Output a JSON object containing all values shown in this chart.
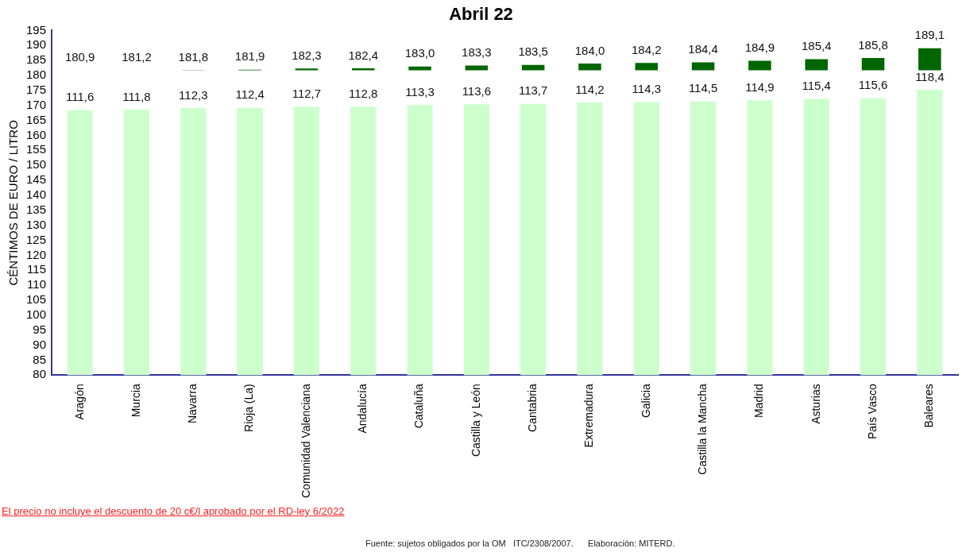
{
  "chart_data": {
    "type": "bar",
    "title": "Abril 22",
    "ylabel": "CÉNTIMOS DE EURO / LITRO",
    "categories": [
      "Aragón",
      "Murcia",
      "Navarra",
      "Rioja (La)",
      "Comunidad Valenciana",
      "Andalucía",
      "Cataluña",
      "Castilla y León",
      "Cantabria",
      "Extremadura",
      "Galicia",
      "Castilla la Mancha",
      "Madrid",
      "Asturias",
      "País Vasco",
      "Baleares"
    ],
    "series": [
      {
        "color": "#ccffcc",
        "axis": "y2",
        "values": [
          111.6,
          111.8,
          112.3,
          112.4,
          112.7,
          112.8,
          113.3,
          113.6,
          113.7,
          114.2,
          114.3,
          114.5,
          114.9,
          115.4,
          115.6,
          118.4
        ],
        "value_labels": [
          "111,6",
          "111,8",
          "112,3",
          "112,4",
          "112,7",
          "112,8",
          "113,3",
          "113,6",
          "113,7",
          "114,2",
          "114,3",
          "114,5",
          "114,9",
          "115,4",
          "115,6",
          "118,4"
        ]
      },
      {
        "color": "#006600",
        "base": [
          null,
          null,
          181.7,
          181.7,
          181.7,
          181.7,
          181.7,
          181.7,
          181.7,
          181.7,
          181.7,
          181.7,
          181.7,
          181.7,
          181.7,
          181.7
        ],
        "values": [
          null,
          null,
          0.1,
          0.2,
          0.6,
          0.7,
          1.3,
          1.6,
          1.8,
          2.3,
          2.5,
          2.7,
          3.2,
          3.7,
          4.1,
          7.4
        ],
        "value_labels": [
          "180,9",
          "181,2",
          "181,8",
          "181,9",
          "182,3",
          "182,4",
          "183,0",
          "183,3",
          "183,5",
          "184,0",
          "184,2",
          "184,4",
          "184,9",
          "185,4",
          "185,8",
          "189,1"
        ]
      }
    ],
    "ylim": [
      80,
      195
    ],
    "yticks": [
      80,
      85,
      90,
      95,
      100,
      105,
      110,
      115,
      120,
      125,
      130,
      135,
      140,
      145,
      150,
      155,
      160,
      165,
      170,
      175,
      180,
      185,
      190,
      195
    ],
    "y2lim": [
      23.2,
      138.2
    ],
    "grid": false,
    "legend": false,
    "annotations": [
      "El precio no incluye el descuento de 20 c€/l aprobado por el RD-ley 6/2022",
      "Fuente: sujetos obligados por la OM   ITC/2308/2007.      Elaboración: MITERD."
    ]
  }
}
